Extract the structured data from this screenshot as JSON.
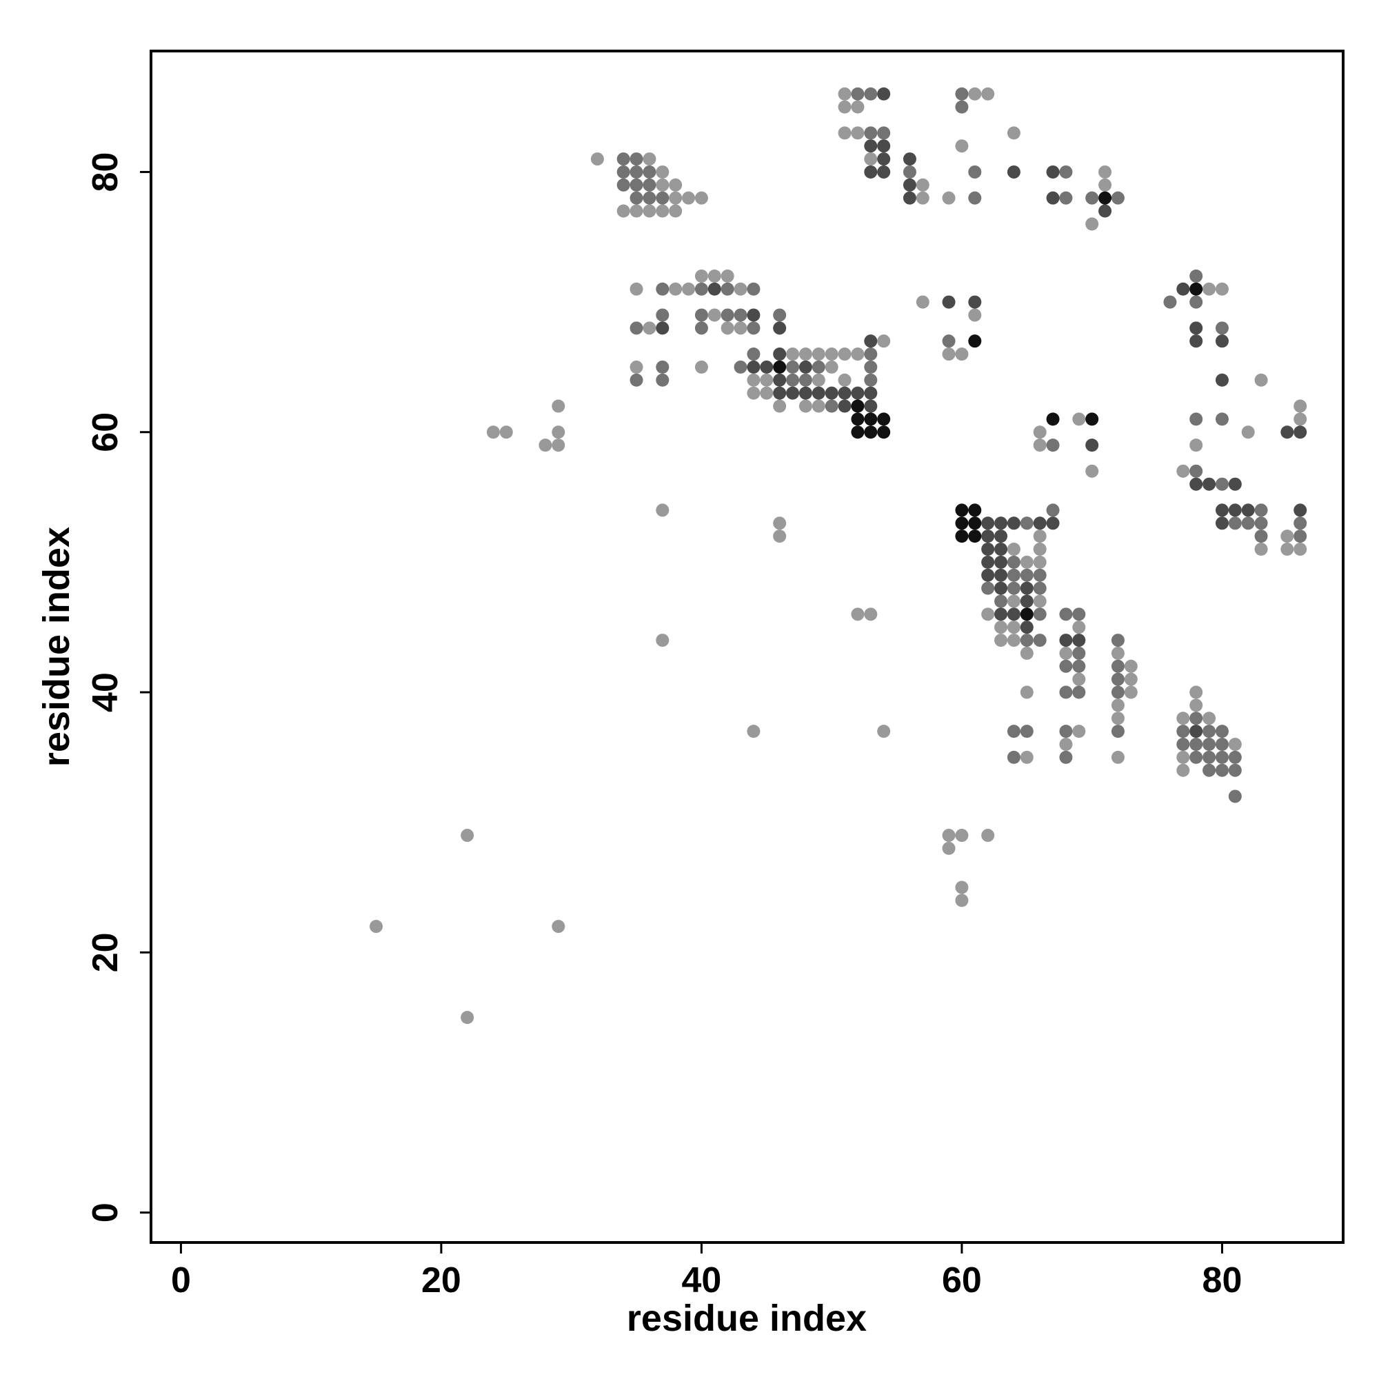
{
  "chart_data": {
    "type": "scatter",
    "x_label": "residue index",
    "y_label": "residue index",
    "xlim": [
      -2.3,
      89.3
    ],
    "ylim": [
      -2.3,
      89.3
    ],
    "xticks": [
      0,
      20,
      40,
      60,
      80
    ],
    "yticks": [
      0,
      20,
      40,
      60,
      80
    ],
    "grid": false,
    "series": [
      {
        "color": "#999999",
        "x": [
          51,
          61,
          62,
          51,
          52,
          51,
          52,
          64,
          60,
          32,
          36,
          53,
          37,
          71,
          37,
          38,
          57,
          71,
          38,
          39,
          40,
          57,
          59,
          34,
          35,
          36,
          37,
          38,
          70,
          40,
          41,
          42,
          35,
          38,
          39,
          43,
          79,
          80,
          57,
          41,
          61,
          36,
          42,
          43,
          54,
          47,
          48,
          49,
          50,
          51,
          52,
          59,
          60,
          35,
          40,
          50,
          44,
          45,
          49,
          51,
          83,
          44,
          45,
          29,
          46,
          48,
          49,
          86,
          69,
          86,
          24,
          25,
          29,
          66,
          82,
          28,
          29,
          66,
          78,
          70,
          77,
          37,
          46,
          46,
          66,
          85,
          64,
          66,
          83,
          85,
          86,
          65,
          66,
          64,
          66,
          52,
          53,
          62,
          63,
          64,
          69,
          37,
          63,
          64,
          65,
          68,
          72,
          73,
          69,
          73,
          65,
          73,
          78,
          72,
          78,
          72,
          77,
          79,
          44,
          54,
          69,
          68,
          81,
          65,
          72,
          77,
          77,
          22,
          59,
          60,
          62,
          59,
          60,
          60,
          15,
          29,
          22
        ],
        "values": [
          86,
          86,
          86,
          85,
          85,
          83,
          83,
          83,
          82,
          81,
          81,
          81,
          80,
          80,
          79,
          79,
          79,
          79,
          78,
          78,
          78,
          78,
          78,
          77,
          77,
          77,
          77,
          77,
          76,
          72,
          72,
          72,
          71,
          71,
          71,
          71,
          71,
          71,
          70,
          69,
          69,
          68,
          68,
          68,
          67,
          66,
          66,
          66,
          66,
          66,
          66,
          66,
          66,
          65,
          65,
          65,
          64,
          64,
          64,
          64,
          64,
          63,
          63,
          62,
          62,
          62,
          62,
          62,
          61,
          61,
          60,
          60,
          60,
          60,
          60,
          59,
          59,
          59,
          59,
          57,
          57,
          54,
          53,
          52,
          52,
          52,
          51,
          51,
          51,
          51,
          51,
          50,
          50,
          47,
          47,
          46,
          46,
          46,
          45,
          45,
          45,
          44,
          44,
          44,
          43,
          43,
          43,
          42,
          41,
          41,
          40,
          40,
          40,
          39,
          39,
          38,
          38,
          38,
          37,
          37,
          37,
          36,
          36,
          35,
          35,
          35,
          34,
          29,
          29,
          29,
          29,
          28,
          25,
          24,
          22,
          22,
          15
        ]
      },
      {
        "color": "#737373",
        "x": [
          52,
          53,
          60,
          60,
          53,
          54,
          34,
          35,
          34,
          35,
          36,
          56,
          61,
          68,
          34,
          35,
          36,
          35,
          36,
          37,
          61,
          68,
          70,
          72,
          78,
          37,
          40,
          42,
          44,
          76,
          78,
          37,
          40,
          42,
          43,
          46,
          35,
          40,
          44,
          80,
          59,
          44,
          53,
          37,
          43,
          47,
          49,
          53,
          35,
          37,
          47,
          48,
          53,
          50,
          78,
          80,
          67,
          78,
          80,
          67,
          83,
          65,
          81,
          82,
          83,
          86,
          83,
          86,
          64,
          64,
          65,
          66,
          62,
          64,
          66,
          63,
          66,
          68,
          69,
          65,
          66,
          72,
          69,
          68,
          69,
          72,
          72,
          68,
          69,
          72,
          78,
          64,
          65,
          68,
          72,
          77,
          79,
          80,
          77,
          78,
          79,
          80,
          64,
          68,
          78,
          79,
          80,
          81,
          79,
          80,
          81,
          81
        ],
        "values": [
          86,
          86,
          86,
          85,
          83,
          83,
          81,
          81,
          80,
          80,
          80,
          80,
          80,
          80,
          79,
          79,
          79,
          78,
          78,
          78,
          78,
          78,
          78,
          78,
          72,
          71,
          71,
          71,
          71,
          70,
          70,
          69,
          69,
          69,
          69,
          69,
          68,
          68,
          68,
          68,
          67,
          66,
          66,
          65,
          65,
          65,
          65,
          65,
          64,
          64,
          64,
          64,
          64,
          62,
          61,
          61,
          59,
          57,
          56,
          54,
          54,
          53,
          53,
          53,
          53,
          53,
          52,
          52,
          50,
          49,
          49,
          49,
          48,
          48,
          48,
          47,
          46,
          46,
          46,
          44,
          44,
          44,
          43,
          42,
          42,
          42,
          41,
          40,
          40,
          40,
          38,
          37,
          37,
          37,
          37,
          37,
          37,
          37,
          36,
          36,
          36,
          36,
          35,
          35,
          35,
          35,
          35,
          35,
          34,
          34,
          34,
          32
        ]
      },
      {
        "color": "#4a4a4a",
        "x": [
          54,
          53,
          54,
          54,
          56,
          53,
          54,
          64,
          67,
          56,
          56,
          67,
          71,
          41,
          77,
          59,
          61,
          44,
          37,
          46,
          78,
          53,
          78,
          80,
          46,
          44,
          45,
          48,
          46,
          80,
          46,
          47,
          48,
          49,
          50,
          51,
          52,
          53,
          51,
          53,
          85,
          86,
          70,
          78,
          79,
          81,
          80,
          81,
          82,
          86,
          62,
          63,
          64,
          66,
          67,
          80,
          62,
          63,
          62,
          63,
          62,
          63,
          62,
          63,
          63,
          65,
          65,
          63,
          64,
          65,
          68,
          69,
          78
        ],
        "values": [
          86,
          82,
          82,
          81,
          81,
          80,
          80,
          80,
          80,
          79,
          78,
          78,
          77,
          71,
          71,
          70,
          70,
          69,
          68,
          68,
          68,
          67,
          67,
          67,
          66,
          65,
          65,
          65,
          64,
          64,
          63,
          63,
          63,
          63,
          63,
          63,
          63,
          63,
          62,
          62,
          60,
          60,
          59,
          56,
          56,
          56,
          54,
          54,
          54,
          54,
          53,
          53,
          53,
          53,
          53,
          53,
          52,
          52,
          51,
          51,
          50,
          50,
          49,
          49,
          48,
          48,
          47,
          46,
          46,
          45,
          44,
          44,
          37
        ]
      },
      {
        "color": "#111111",
        "x": [
          71,
          78,
          61,
          46,
          52,
          52,
          53,
          54,
          67,
          70,
          52,
          53,
          54,
          60,
          61,
          60,
          61,
          60,
          61,
          65
        ],
        "values": [
          78,
          71,
          67,
          65,
          62,
          61,
          61,
          61,
          61,
          61,
          60,
          60,
          60,
          54,
          54,
          53,
          53,
          52,
          52,
          46
        ]
      }
    ]
  }
}
